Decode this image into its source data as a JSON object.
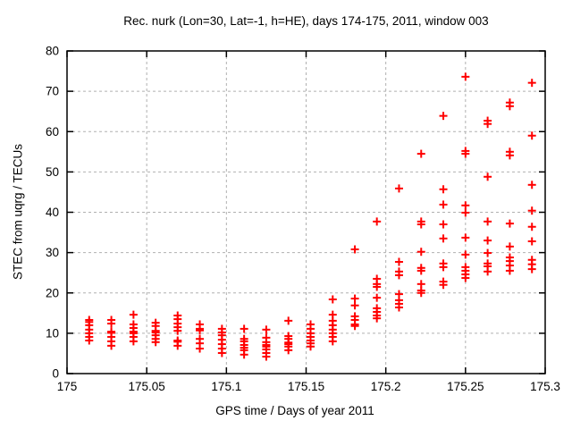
{
  "chart_data": {
    "type": "scatter",
    "title": "Rec. nurk (Lon=30, Lat=-1, h=HE), days 174-175, 2011, window 003",
    "xlabel": "GPS time / Days of year 2011",
    "ylabel": "STEC from uqrg / TECUs",
    "xlim": [
      175,
      175.3
    ],
    "ylim": [
      0,
      80
    ],
    "xticks": [
      175,
      175.05,
      175.1,
      175.15,
      175.2,
      175.25,
      175.3
    ],
    "xtick_labels": [
      "175",
      "175.05",
      "175.1",
      "175.15",
      "175.2",
      "175.25",
      "175.3"
    ],
    "yticks": [
      0,
      10,
      20,
      30,
      40,
      50,
      60,
      70,
      80
    ],
    "ytick_labels": [
      "0",
      "10",
      "20",
      "30",
      "40",
      "50",
      "60",
      "70",
      "80"
    ],
    "grid": true,
    "legend": "none",
    "marker": "plus",
    "marker_color": "#ff0000",
    "grid_color": "#b0b0b0",
    "border_color": "#000000",
    "clusters": [
      {
        "t": 175.0139,
        "values": [
          13.3,
          12.8,
          12.0,
          10.9,
          10.0,
          9.1,
          8.2
        ]
      },
      {
        "t": 175.0278,
        "values": [
          13.3,
          12.4,
          10.4,
          10.1,
          9.1,
          8.0,
          6.9
        ]
      },
      {
        "t": 175.0417,
        "values": [
          14.6,
          12.2,
          11.3,
          10.4,
          10.0,
          9.1,
          8.0
        ]
      },
      {
        "t": 175.0556,
        "values": [
          12.6,
          11.8,
          10.6,
          10.2,
          9.5,
          8.6,
          7.8
        ]
      },
      {
        "t": 175.0694,
        "values": [
          14.4,
          13.5,
          12.4,
          11.5,
          10.6,
          8.2,
          7.9,
          6.9
        ]
      },
      {
        "t": 175.0833,
        "values": [
          12.2,
          11.1,
          10.7,
          8.6,
          7.5,
          6.2
        ]
      },
      {
        "t": 175.0972,
        "values": [
          11.1,
          10.2,
          9.5,
          8.4,
          7.3,
          6.2,
          5.1
        ]
      },
      {
        "t": 175.1111,
        "values": [
          11.1,
          8.6,
          8.0,
          7.1,
          6.4,
          5.8,
          4.7
        ]
      },
      {
        "t": 175.125,
        "values": [
          10.9,
          8.9,
          7.8,
          7.1,
          6.7,
          6.0,
          5.1,
          4.2
        ]
      },
      {
        "t": 175.1389,
        "values": [
          13.1,
          9.3,
          8.6,
          7.7,
          7.3,
          6.7,
          5.8
        ]
      },
      {
        "t": 175.1528,
        "values": [
          12.2,
          11.1,
          10.0,
          9.1,
          8.2,
          7.5,
          6.7
        ]
      },
      {
        "t": 175.1667,
        "values": [
          18.4,
          14.6,
          13.1,
          12.0,
          10.9,
          10.0,
          9.1,
          8.0
        ]
      },
      {
        "t": 175.1806,
        "values": [
          30.8,
          18.6,
          16.9,
          14.2,
          13.3,
          12.2,
          11.8
        ]
      },
      {
        "t": 175.1944,
        "values": [
          37.7,
          23.5,
          22.2,
          21.5,
          18.8,
          16.2,
          15.3,
          14.4,
          13.7
        ]
      },
      {
        "t": 175.2083,
        "values": [
          45.9,
          27.7,
          25.3,
          24.4,
          19.7,
          18.2,
          17.3,
          16.4
        ]
      },
      {
        "t": 175.2222,
        "values": [
          54.5,
          37.7,
          37.0,
          30.2,
          26.2,
          25.5,
          22.2,
          20.6,
          20.0
        ]
      },
      {
        "t": 175.2361,
        "values": [
          63.9,
          45.7,
          41.9,
          37.0,
          33.5,
          27.3,
          26.4,
          22.8,
          22.0
        ]
      },
      {
        "t": 175.25,
        "values": [
          73.6,
          55.2,
          54.5,
          41.7,
          39.9,
          33.7,
          29.5,
          26.4,
          25.5,
          24.6,
          23.7
        ]
      },
      {
        "t": 175.2639,
        "values": [
          62.7,
          61.9,
          48.8,
          37.7,
          33.0,
          29.9,
          27.3,
          26.6,
          25.3
        ]
      },
      {
        "t": 175.2778,
        "values": [
          67.2,
          66.3,
          55.0,
          54.1,
          37.2,
          31.5,
          28.8,
          27.9,
          26.8,
          25.5
        ]
      },
      {
        "t": 175.2917,
        "values": [
          72.1,
          59.0,
          46.8,
          40.4,
          36.4,
          32.8,
          28.2,
          27.1,
          25.9
        ]
      }
    ]
  }
}
